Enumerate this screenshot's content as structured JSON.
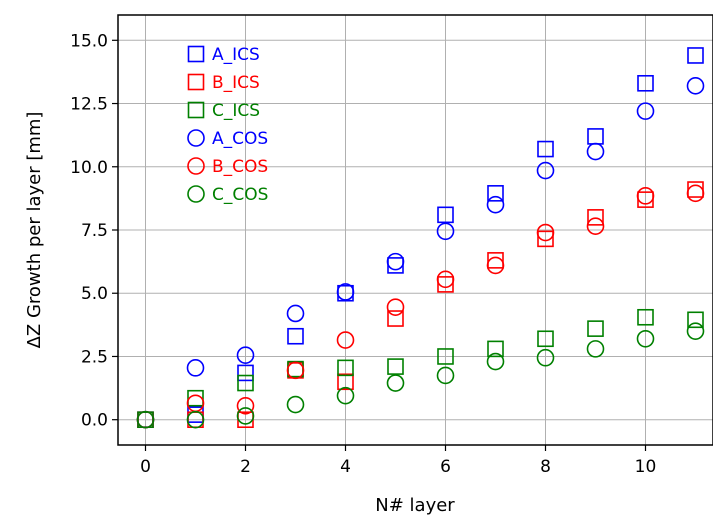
{
  "chart_data": {
    "type": "scatter",
    "title": "",
    "xlabel": "N# layer",
    "ylabel": "ΔZ Growth per layer [mm]",
    "xlim": [
      -0.55,
      11.35
    ],
    "ylim": [
      -1.0,
      16.0
    ],
    "xticks": [
      0,
      2,
      4,
      6,
      8,
      10
    ],
    "xtick_labels": [
      "0",
      "2",
      "4",
      "6",
      "8",
      "10"
    ],
    "yticks": [
      0.0,
      2.5,
      5.0,
      7.5,
      10.0,
      12.5,
      15.0
    ],
    "ytick_labels": [
      "0.0",
      "2.5",
      "5.0",
      "7.5",
      "10.0",
      "12.5",
      "15.0"
    ],
    "grid": true,
    "legend_position": "top-left",
    "x": [
      0,
      1,
      2,
      3,
      4,
      5,
      6,
      7,
      8,
      9,
      10,
      11
    ],
    "series": [
      {
        "name": "A_ICS",
        "marker": "square",
        "color": "#0000ff",
        "values": [
          0.0,
          0.2,
          1.85,
          3.3,
          5.0,
          6.1,
          8.1,
          8.95,
          10.7,
          11.2,
          13.3,
          14.4
        ]
      },
      {
        "name": "B_ICS",
        "marker": "square",
        "color": "#ff0000",
        "values": [
          0.0,
          0.0,
          0.0,
          1.95,
          1.5,
          4.0,
          5.35,
          6.3,
          7.15,
          8.0,
          8.7,
          9.1
        ]
      },
      {
        "name": "C_ICS",
        "marker": "square",
        "color": "#008000",
        "values": [
          0.0,
          0.85,
          1.45,
          2.0,
          2.05,
          2.1,
          2.5,
          2.8,
          3.2,
          3.6,
          4.05,
          3.95
        ]
      },
      {
        "name": "A_COS",
        "marker": "circle",
        "color": "#0000ff",
        "values": [
          0.0,
          2.05,
          2.55,
          4.2,
          5.05,
          6.25,
          7.45,
          8.5,
          9.85,
          10.6,
          12.2,
          13.2
        ]
      },
      {
        "name": "B_COS",
        "marker": "circle",
        "color": "#ff0000",
        "values": [
          0.0,
          0.65,
          0.55,
          1.95,
          3.15,
          4.45,
          5.55,
          6.1,
          7.4,
          7.65,
          8.85,
          8.95
        ]
      },
      {
        "name": "C_COS",
        "marker": "circle",
        "color": "#008000",
        "values": [
          0.0,
          0.0,
          0.15,
          0.6,
          0.95,
          1.45,
          1.75,
          2.3,
          2.45,
          2.8,
          3.2,
          3.5
        ]
      }
    ]
  }
}
